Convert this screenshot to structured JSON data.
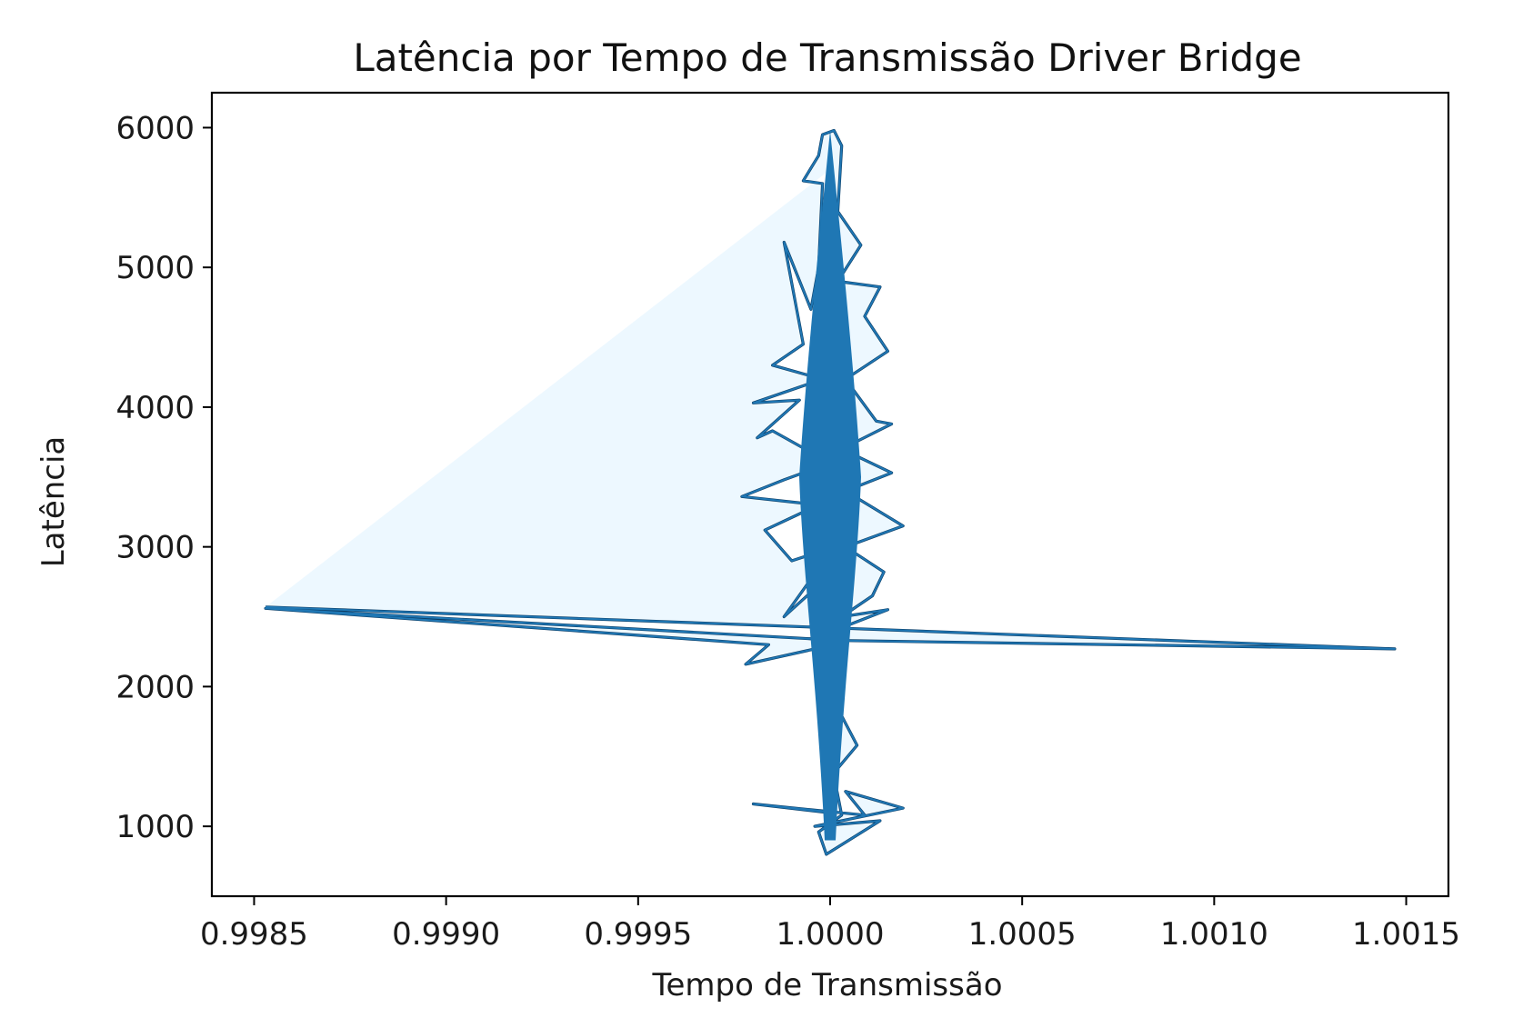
{
  "chart_data": {
    "type": "line",
    "title": "Latência por Tempo de Transmissão Driver Bridge",
    "xlabel": "Tempo de Transmissão",
    "ylabel": "Latência",
    "xlim": [
      0.99839,
      1.00161
    ],
    "ylim": [
      500,
      6250
    ],
    "xticks": [
      0.9985,
      0.999,
      0.9995,
      1.0,
      1.0005,
      1.001,
      1.0015
    ],
    "xtick_labels": [
      "0.9985",
      "0.9990",
      "0.9995",
      "1.0000",
      "1.0005",
      "1.0010",
      "1.0015"
    ],
    "yticks": [
      1000,
      2000,
      3000,
      4000,
      5000,
      6000
    ],
    "ytick_labels": [
      "1000",
      "2000",
      "3000",
      "4000",
      "5000",
      "6000"
    ],
    "grid": false,
    "legend": "none",
    "line_color": "#1f77b4",
    "edge_color": "#0b3d66",
    "series": [
      {
        "points": [
          [
            0.99853,
            2570
          ],
          [
            1.00001,
            2420
          ],
          [
            1.00147,
            2270
          ],
          [
            1.00003,
            2330
          ],
          [
            0.99853,
            2560
          ],
          [
            0.99984,
            2300
          ],
          [
            0.99978,
            2160
          ],
          [
            1.00001,
            2300
          ],
          [
            0.99995,
            2480
          ],
          [
            1.0,
            2600
          ],
          [
            0.99999,
            1800
          ],
          [
            1.0,
            1300
          ],
          [
            0.99999,
            1100
          ],
          [
            0.9998,
            1160
          ],
          [
            1.00009,
            1080
          ],
          [
            1.00004,
            1250
          ],
          [
            1.00019,
            1130
          ],
          [
            0.99996,
            1000
          ],
          [
            1.00013,
            1040
          ],
          [
            0.99999,
            800
          ],
          [
            0.99997,
            960
          ],
          [
            1.00003,
            1080
          ],
          [
            1.0,
            1500
          ],
          [
            0.99999,
            2000
          ],
          [
            1.00007,
            1580
          ],
          [
            1.0,
            1350
          ],
          [
            0.99999,
            2200
          ],
          [
            0.99996,
            2700
          ],
          [
            0.99988,
            2500
          ],
          [
            1.00001,
            3000
          ],
          [
            0.9999,
            2900
          ],
          [
            0.99983,
            3120
          ],
          [
            0.99997,
            3300
          ],
          [
            0.99977,
            3360
          ],
          [
            0.99988,
            3480
          ],
          [
            1.0,
            3600
          ],
          [
            0.99985,
            3830
          ],
          [
            0.99981,
            3780
          ],
          [
            0.99992,
            4050
          ],
          [
            0.9998,
            4030
          ],
          [
            0.99998,
            4200
          ],
          [
            0.99985,
            4300
          ],
          [
            0.99993,
            4450
          ],
          [
            0.99988,
            5180
          ],
          [
            0.99995,
            4700
          ],
          [
            0.99997,
            5000
          ],
          [
            0.99998,
            5600
          ],
          [
            0.99993,
            5620
          ],
          [
            0.99997,
            5800
          ],
          [
            0.99998,
            5950
          ],
          [
            1.00001,
            5980
          ],
          [
            1.00003,
            5870
          ],
          [
            1.00002,
            5400
          ],
          [
            1.00008,
            5160
          ],
          [
            1.00002,
            4900
          ],
          [
            1.00013,
            4860
          ],
          [
            1.00009,
            4650
          ],
          [
            1.00015,
            4400
          ],
          [
            1.00004,
            4200
          ],
          [
            1.00012,
            3900
          ],
          [
            1.00016,
            3880
          ],
          [
            1.00003,
            3700
          ],
          [
            1.00016,
            3530
          ],
          [
            1.00004,
            3400
          ],
          [
            1.00019,
            3150
          ],
          [
            1.00004,
            3000
          ],
          [
            1.00014,
            2820
          ],
          [
            1.00011,
            2650
          ],
          [
            1.00003,
            2500
          ],
          [
            1.00015,
            2550
          ],
          [
            1.00001,
            2400
          ],
          [
            0.99996,
            3000
          ],
          [
            1.00003,
            3500
          ],
          [
            0.99997,
            4000
          ],
          [
            1.00002,
            4500
          ],
          [
            0.99999,
            5000
          ],
          [
            1.00001,
            5500
          ],
          [
            0.99999,
            4300
          ],
          [
            1.00002,
            3800
          ],
          [
            0.99998,
            3300
          ],
          [
            1.00002,
            2800
          ],
          [
            0.99998,
            2450
          ],
          [
            1.0,
            3100
          ],
          [
            0.99999,
            3700
          ],
          [
            1.00001,
            4100
          ],
          [
            0.99999,
            4600
          ],
          [
            1.0,
            5300
          ],
          [
            1.0,
            5700
          ]
        ]
      }
    ]
  }
}
